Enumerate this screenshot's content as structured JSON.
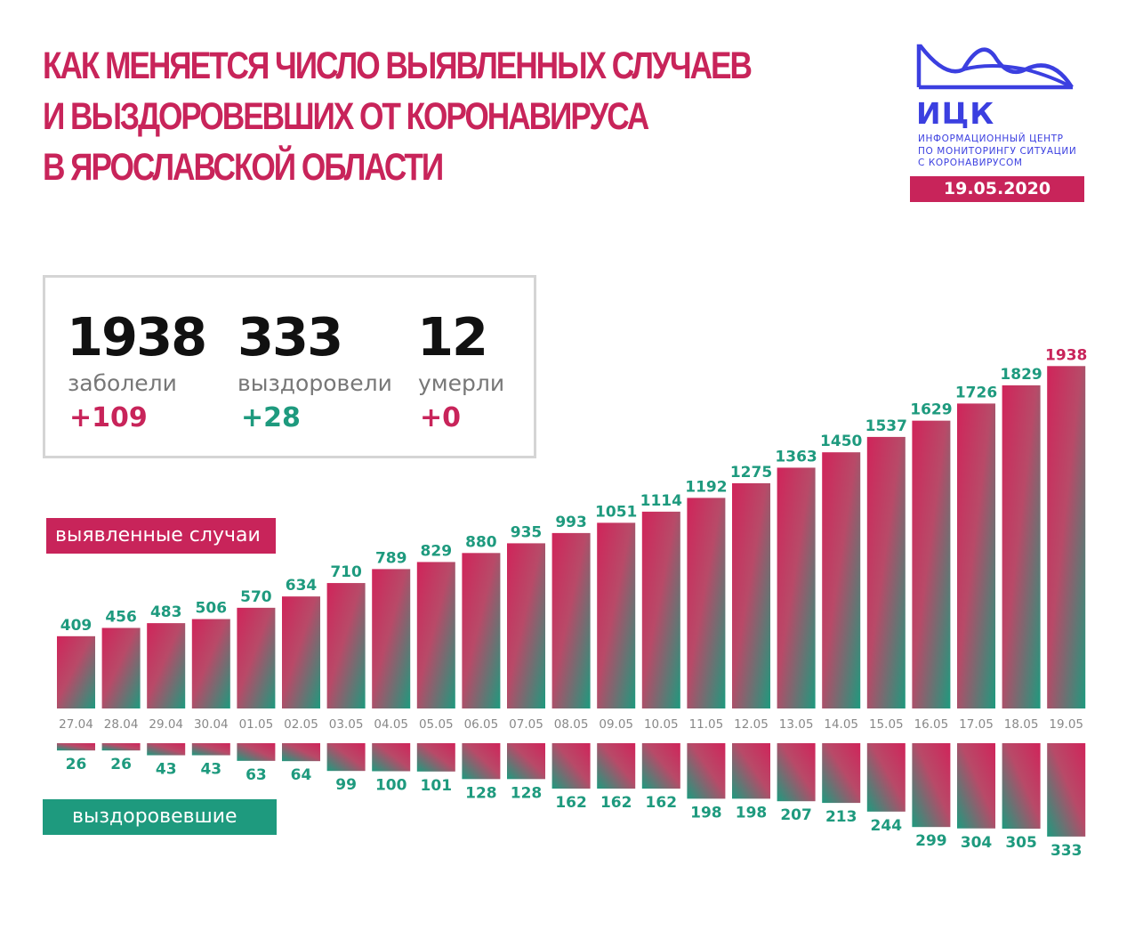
{
  "header": {
    "title_lines": [
      "КАК МЕНЯЕТСЯ ЧИСЛО ВЫЯВЛЕННЫХ СЛУЧАЕВ",
      "И ВЫЗДОРОВЕВШИХ ОТ КОРОНАВИРУСА",
      "В ЯРОСЛАВСКОЙ ОБЛАСТИ"
    ]
  },
  "logo": {
    "name": "ИЦК",
    "subtitle_lines": [
      "ИНФОРМАЦИОННЫЙ ЦЕНТР",
      "ПО МОНИТОРИНГУ СИТУАЦИИ",
      "С КОРОНАВИРУСОМ"
    ],
    "color": "#3b3fe0"
  },
  "date": "19.05.2020",
  "summary": {
    "cases": {
      "value": "1938",
      "label": "заболели",
      "delta": "+109"
    },
    "recovered": {
      "value": "333",
      "label": "выздоровели",
      "delta": "+28"
    },
    "deaths": {
      "value": "12",
      "label": "умерли",
      "delta": "+0"
    }
  },
  "legend": {
    "cases": "выявленные случаи",
    "recovered": "выздоровевшие"
  },
  "colors": {
    "accent_red": "#c8245a",
    "accent_green": "#1e9a7e"
  },
  "chart_data": {
    "type": "bar",
    "categories": [
      "27.04",
      "28.04",
      "29.04",
      "30.04",
      "01.05",
      "02.05",
      "03.05",
      "04.05",
      "05.05",
      "06.05",
      "07.05",
      "08.05",
      "09.05",
      "10.05",
      "11.05",
      "12.05",
      "13.05",
      "14.05",
      "15.05",
      "16.05",
      "17.05",
      "18.05",
      "19.05"
    ],
    "series": [
      {
        "name": "выявленные случаи",
        "values": [
          409,
          456,
          483,
          506,
          570,
          634,
          710,
          789,
          829,
          880,
          935,
          993,
          1051,
          1114,
          1192,
          1275,
          1363,
          1450,
          1537,
          1629,
          1726,
          1829,
          1938
        ]
      },
      {
        "name": "выздоровевшие",
        "values": [
          26,
          26,
          43,
          43,
          63,
          64,
          99,
          100,
          101,
          128,
          128,
          162,
          162,
          162,
          198,
          198,
          207,
          213,
          244,
          299,
          304,
          305,
          333
        ]
      }
    ],
    "title": "КАК МЕНЯЕТСЯ ЧИСЛО ВЫЯВЛЕННЫХ СЛУЧАЕВ И ВЫЗДОРОВЕВШИХ ОТ КОРОНАВИРУСА В ЯРОСЛАВСКОЙ ОБЛАСТИ",
    "xlabel": "",
    "ylabel": "",
    "grid": false,
    "layout": "cases bars above date axis, recovered bars hanging below it"
  }
}
